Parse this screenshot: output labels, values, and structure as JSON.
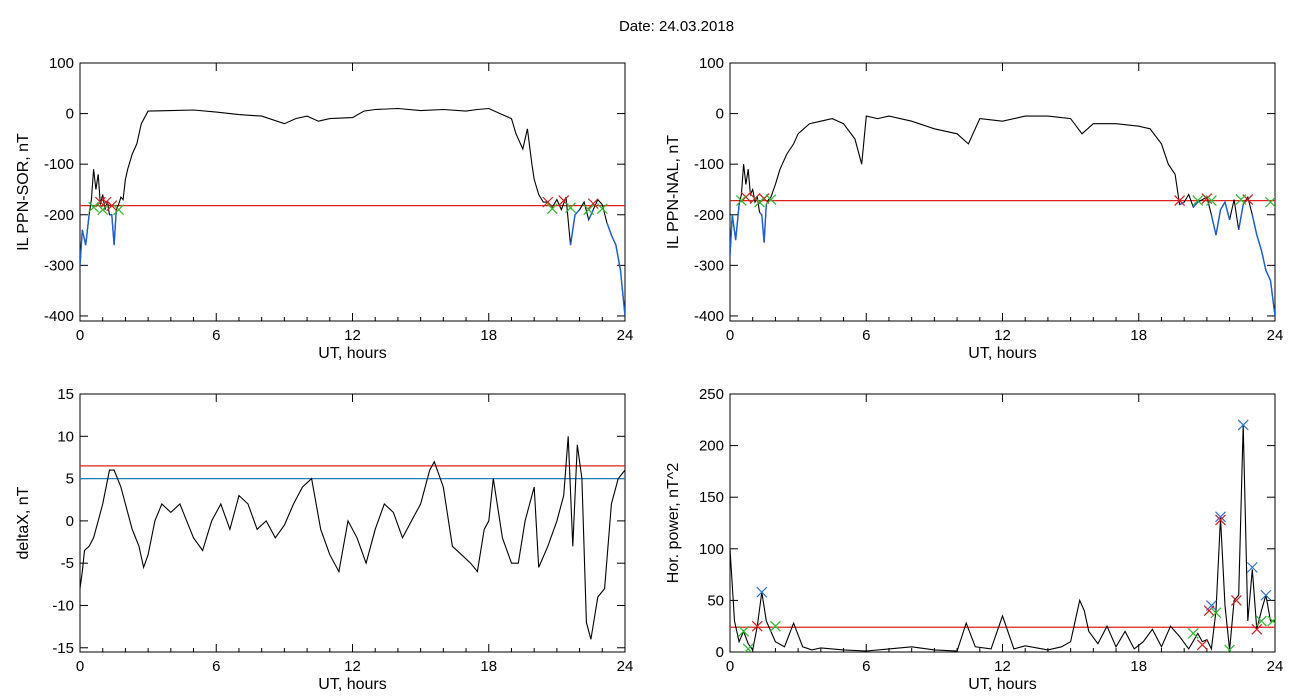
{
  "header": {
    "date_label": "Date:  24.03.2018"
  },
  "colors": {
    "threshold_red": "#e0201b",
    "threshold_blue": "#1f7fb8",
    "trace": "#000000",
    "highlight_blue": "#1a5fd6",
    "marker_red": "#d11f1f",
    "marker_green": "#2fb82f",
    "marker_blue": "#2a6fd8"
  },
  "chart_data": [
    {
      "id": "il-sor",
      "type": "line",
      "xlabel": "UT, hours",
      "ylabel": "IL PPN-SOR, nT",
      "xlim": [
        0,
        24
      ],
      "ylim": [
        -410,
        100
      ],
      "xticks": [
        0,
        6,
        12,
        18,
        24
      ],
      "yticks": [
        100,
        0,
        -100,
        -200,
        -300,
        -400
      ],
      "ytick_labels": [
        "100",
        "0",
        "-100",
        "-200",
        "-300",
        "-400"
      ],
      "threshold": {
        "value": -182,
        "color": "red"
      },
      "series": [
        {
          "x": [
            0,
            0.1,
            0.25,
            0.4,
            0.5,
            0.6,
            0.7,
            0.8,
            0.9,
            1.0,
            1.1,
            1.2,
            1.3,
            1.4,
            1.5,
            1.6,
            1.7,
            1.8,
            1.9,
            2.0,
            2.1,
            2.3,
            2.5,
            2.7,
            3,
            4,
            5,
            6,
            7,
            8,
            9,
            9.5,
            10,
            10.5,
            11,
            12,
            12.5,
            13,
            14,
            15,
            16,
            17,
            17.5,
            18,
            18.5,
            19,
            19.2,
            19.5,
            19.7,
            19.9,
            20,
            20.2,
            20.4,
            20.6,
            20.8,
            21,
            21.2,
            21.4,
            21.6,
            21.8,
            22,
            22.2,
            22.4,
            22.6,
            22.8,
            23,
            23.2,
            23.4,
            23.6,
            23.8,
            24
          ],
          "values": [
            -300,
            -230,
            -260,
            -200,
            -170,
            -110,
            -150,
            -120,
            -180,
            -160,
            -190,
            -175,
            -200,
            -200,
            -260,
            -190,
            -180,
            -165,
            -170,
            -130,
            -110,
            -80,
            -60,
            -20,
            5,
            6,
            7,
            3,
            -2,
            -5,
            -20,
            -10,
            -5,
            -15,
            -10,
            -8,
            5,
            8,
            10,
            6,
            8,
            5,
            8,
            10,
            0,
            -10,
            -40,
            -70,
            -30,
            -100,
            -130,
            -160,
            -175,
            -175,
            -185,
            -170,
            -190,
            -165,
            -260,
            -200,
            -190,
            -175,
            -210,
            -190,
            -170,
            -180,
            -215,
            -240,
            -260,
            -310,
            -400
          ]
        }
      ],
      "markers": [
        {
          "x": 0.9,
          "y": -175,
          "color": "red"
        },
        {
          "x": 1.15,
          "y": -175,
          "color": "red"
        },
        {
          "x": 1.4,
          "y": -182,
          "color": "red"
        },
        {
          "x": 0.6,
          "y": -185,
          "color": "green"
        },
        {
          "x": 1.0,
          "y": -190,
          "color": "green"
        },
        {
          "x": 1.7,
          "y": -190,
          "color": "green"
        },
        {
          "x": 20.6,
          "y": -175,
          "color": "red"
        },
        {
          "x": 21.3,
          "y": -172,
          "color": "red"
        },
        {
          "x": 22.6,
          "y": -178,
          "color": "red"
        },
        {
          "x": 20.8,
          "y": -188,
          "color": "green"
        },
        {
          "x": 21.6,
          "y": -186,
          "color": "green"
        },
        {
          "x": 22.4,
          "y": -190,
          "color": "green"
        },
        {
          "x": 23.0,
          "y": -188,
          "color": "green"
        }
      ]
    },
    {
      "id": "il-nal",
      "type": "line",
      "xlabel": "UT, hours",
      "ylabel": "IL PPN-NAL, nT",
      "xlim": [
        0,
        24
      ],
      "ylim": [
        -410,
        100
      ],
      "xticks": [
        0,
        6,
        12,
        18,
        24
      ],
      "yticks": [
        100,
        0,
        -100,
        -200,
        -300,
        -400
      ],
      "ytick_labels": [
        "100",
        "0",
        "-100",
        "-200",
        "-300",
        "-400"
      ],
      "threshold": {
        "value": -172,
        "color": "red"
      },
      "series": [
        {
          "x": [
            0,
            0.1,
            0.25,
            0.4,
            0.5,
            0.6,
            0.7,
            0.8,
            0.9,
            1.0,
            1.1,
            1.2,
            1.3,
            1.4,
            1.5,
            1.6,
            1.7,
            1.8,
            2.0,
            2.2,
            2.5,
            2.8,
            3.0,
            3.5,
            4,
            4.5,
            5,
            5.5,
            5.8,
            6,
            6.5,
            7,
            8,
            9,
            10,
            10.5,
            11,
            12,
            13,
            14,
            15,
            15.5,
            16,
            17,
            18,
            18.5,
            19,
            19.3,
            19.6,
            19.8,
            20,
            20.2,
            20.4,
            20.6,
            20.8,
            21,
            21.2,
            21.4,
            21.6,
            21.8,
            22,
            22.2,
            22.4,
            22.6,
            22.8,
            23,
            23.2,
            23.4,
            23.6,
            23.8,
            24
          ],
          "values": [
            -280,
            -200,
            -250,
            -180,
            -160,
            -100,
            -140,
            -110,
            -160,
            -150,
            -175,
            -165,
            -195,
            -200,
            -255,
            -180,
            -170,
            -165,
            -140,
            -110,
            -80,
            -60,
            -40,
            -20,
            -15,
            -10,
            -20,
            -50,
            -100,
            -5,
            -10,
            -5,
            -15,
            -30,
            -40,
            -60,
            -10,
            -15,
            -5,
            -5,
            -10,
            -40,
            -20,
            -20,
            -25,
            -30,
            -60,
            -100,
            -120,
            -180,
            -175,
            -160,
            -185,
            -175,
            -170,
            -165,
            -200,
            -240,
            -190,
            -175,
            -210,
            -170,
            -230,
            -180,
            -165,
            -200,
            -240,
            -270,
            -310,
            -330,
            -400
          ]
        }
      ],
      "markers": [
        {
          "x": 0.7,
          "y": -165,
          "color": "red"
        },
        {
          "x": 1.1,
          "y": -168,
          "color": "red"
        },
        {
          "x": 1.5,
          "y": -168,
          "color": "red"
        },
        {
          "x": 0.5,
          "y": -172,
          "color": "green"
        },
        {
          "x": 1.3,
          "y": -175,
          "color": "green"
        },
        {
          "x": 1.8,
          "y": -170,
          "color": "green"
        },
        {
          "x": 19.8,
          "y": -172,
          "color": "red"
        },
        {
          "x": 21.0,
          "y": -168,
          "color": "red"
        },
        {
          "x": 22.8,
          "y": -170,
          "color": "red"
        },
        {
          "x": 20.6,
          "y": -172,
          "color": "green"
        },
        {
          "x": 21.2,
          "y": -172,
          "color": "green"
        },
        {
          "x": 22.5,
          "y": -170,
          "color": "green"
        },
        {
          "x": 23.8,
          "y": -175,
          "color": "green"
        }
      ]
    },
    {
      "id": "deltax",
      "type": "line",
      "xlabel": "UT, hours",
      "ylabel": "deltaX, nT",
      "xlim": [
        0,
        24
      ],
      "ylim": [
        -15.5,
        15
      ],
      "xticks": [
        0,
        6,
        12,
        18,
        24
      ],
      "yticks": [
        15,
        10,
        5,
        0,
        -5,
        -10,
        -15
      ],
      "ytick_labels": [
        "15",
        "10",
        "5",
        "0",
        "-5",
        "-10",
        "-15"
      ],
      "thresholds": [
        {
          "value": 6.5,
          "color": "red"
        },
        {
          "value": 5,
          "color": "blue"
        }
      ],
      "series": [
        {
          "x": [
            0,
            0.1,
            0.2,
            0.4,
            0.6,
            0.8,
            1.0,
            1.3,
            1.5,
            1.8,
            2.0,
            2.3,
            2.6,
            2.8,
            3.0,
            3.3,
            3.6,
            4.0,
            4.4,
            4.7,
            5.0,
            5.4,
            5.8,
            6.2,
            6.6,
            7.0,
            7.4,
            7.8,
            8.2,
            8.6,
            9.0,
            9.4,
            9.8,
            10.2,
            10.6,
            11.0,
            11.4,
            11.8,
            12.2,
            12.6,
            13.0,
            13.4,
            13.8,
            14.2,
            14.6,
            15.0,
            15.4,
            15.6,
            16.0,
            16.4,
            16.8,
            17.2,
            17.5,
            17.8,
            18.0,
            18.2,
            18.6,
            19.0,
            19.3,
            19.6,
            20.0,
            20.2,
            20.6,
            21.0,
            21.3,
            21.5,
            21.7,
            21.9,
            22.1,
            22.3,
            22.5,
            22.8,
            23.1,
            23.4,
            23.7,
            24
          ],
          "values": [
            -8,
            -6,
            -3.5,
            -3,
            -2,
            0,
            2,
            6,
            6,
            4,
            2,
            -1,
            -3,
            -5.5,
            -4,
            0,
            2,
            1,
            2,
            0,
            -2,
            -3.5,
            0,
            2,
            -1,
            3,
            2,
            -1,
            0,
            -2,
            -0.5,
            2,
            4,
            5,
            -1,
            -4,
            -6,
            0,
            -2,
            -5,
            -1,
            2,
            1,
            -2,
            0,
            2,
            6,
            7,
            4,
            -3,
            -4,
            -5,
            -6,
            -1,
            0,
            5,
            -2,
            -5,
            -5,
            0,
            4,
            -5.5,
            -3,
            0,
            3,
            10,
            -3,
            9,
            5,
            -12,
            -14,
            -9,
            -8,
            2,
            5,
            6
          ]
        }
      ]
    },
    {
      "id": "hor-power",
      "type": "line",
      "xlabel": "UT, hours",
      "ylabel": "Hor. power, nT^2",
      "xlim": [
        0,
        24
      ],
      "ylim": [
        0,
        250
      ],
      "xticks": [
        0,
        6,
        12,
        18,
        24
      ],
      "yticks": [
        250,
        200,
        150,
        100,
        50,
        0
      ],
      "ytick_labels": [
        "250",
        "200",
        "150",
        "100",
        "50",
        "0"
      ],
      "threshold": {
        "value": 24,
        "color": "red"
      },
      "series": [
        {
          "x": [
            0,
            0.2,
            0.4,
            0.6,
            0.8,
            1.0,
            1.2,
            1.4,
            1.6,
            1.8,
            2.0,
            2.4,
            2.8,
            3.2,
            3.6,
            4.0,
            5.0,
            6.0,
            7.0,
            8.0,
            9.0,
            10.0,
            10.4,
            10.8,
            11.5,
            12.0,
            12.5,
            13.0,
            14.0,
            14.6,
            15.0,
            15.4,
            15.6,
            15.8,
            16.2,
            16.6,
            17.0,
            17.4,
            17.8,
            18.2,
            18.6,
            19.0,
            19.4,
            19.8,
            20.2,
            20.6,
            20.8,
            21.0,
            21.2,
            21.4,
            21.6,
            21.8,
            22.0,
            22.2,
            22.4,
            22.6,
            22.8,
            23.0,
            23.2,
            23.4,
            23.6,
            23.8,
            24
          ],
          "values": [
            100,
            30,
            10,
            20,
            8,
            2,
            25,
            58,
            30,
            20,
            10,
            5,
            28,
            5,
            2,
            4,
            2,
            1,
            3,
            5,
            2,
            1,
            28,
            5,
            3,
            35,
            3,
            6,
            2,
            5,
            10,
            50,
            40,
            20,
            8,
            25,
            5,
            20,
            3,
            10,
            22,
            5,
            25,
            15,
            3,
            18,
            10,
            12,
            3,
            40,
            130,
            45,
            2,
            50,
            55,
            220,
            30,
            80,
            22,
            40,
            55,
            30,
            30
          ]
        }
      ],
      "markers": [
        {
          "x": 1.4,
          "y": 58,
          "color": "blue"
        },
        {
          "x": 1.2,
          "y": 25,
          "color": "red"
        },
        {
          "x": 0.6,
          "y": 20,
          "color": "green"
        },
        {
          "x": 0.8,
          "y": 3,
          "color": "green"
        },
        {
          "x": 2.0,
          "y": 25,
          "color": "green"
        },
        {
          "x": 21.2,
          "y": 45,
          "color": "blue"
        },
        {
          "x": 21.6,
          "y": 131,
          "color": "blue"
        },
        {
          "x": 22.6,
          "y": 220,
          "color": "blue"
        },
        {
          "x": 23.0,
          "y": 82,
          "color": "blue"
        },
        {
          "x": 23.6,
          "y": 55,
          "color": "blue"
        },
        {
          "x": 21.6,
          "y": 128,
          "color": "red"
        },
        {
          "x": 22.3,
          "y": 50,
          "color": "red"
        },
        {
          "x": 21.1,
          "y": 40,
          "color": "red"
        },
        {
          "x": 20.8,
          "y": 7,
          "color": "red"
        },
        {
          "x": 23.2,
          "y": 22,
          "color": "red"
        },
        {
          "x": 20.4,
          "y": 18,
          "color": "green"
        },
        {
          "x": 21.4,
          "y": 38,
          "color": "green"
        },
        {
          "x": 22.0,
          "y": 2,
          "color": "green"
        },
        {
          "x": 23.4,
          "y": 30,
          "color": "green"
        },
        {
          "x": 23.9,
          "y": 30,
          "color": "green"
        }
      ]
    }
  ]
}
